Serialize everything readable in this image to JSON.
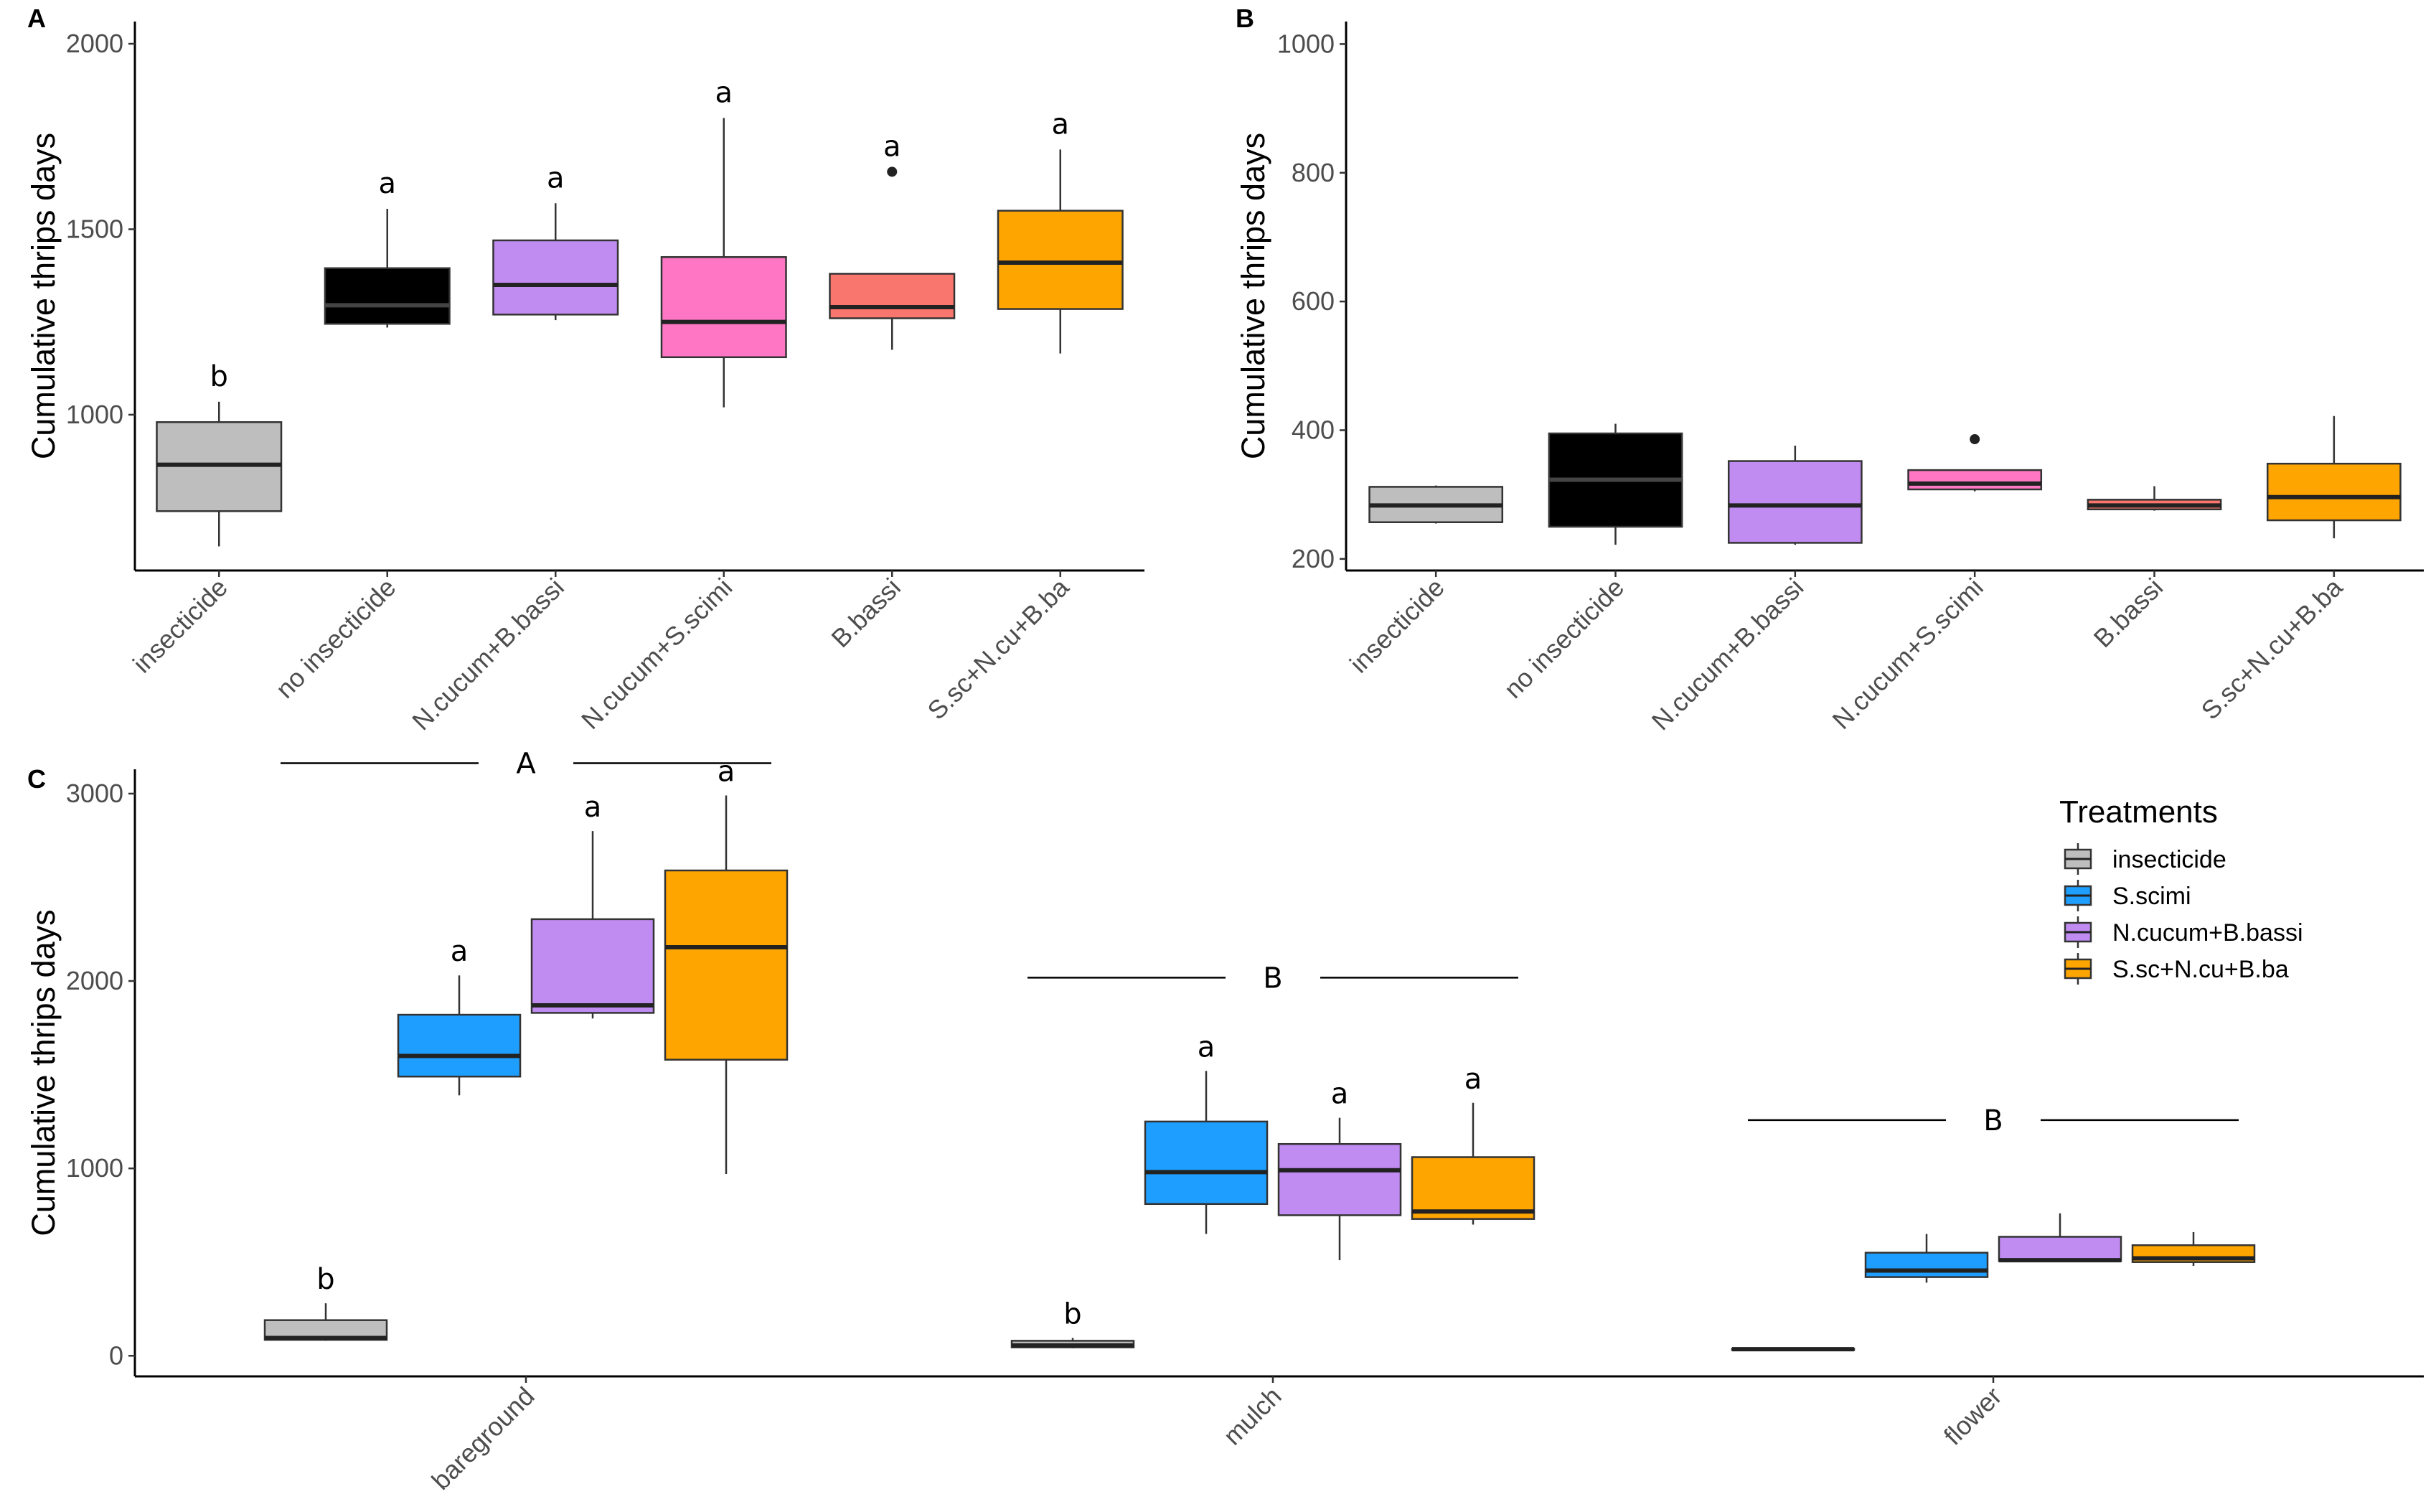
{
  "colors": {
    "insecticide": "#bebebe",
    "no insecticide": "#000000",
    "N.cucum+B.bassi": "#c08cf2",
    "N.cucum+S.scimi": "#ff77c4",
    "B.bassi": "#f8766d",
    "S.sc+N.cu+B.ba": "#ffa500",
    "S.scimi": "#1e9fff"
  },
  "chart_data": [
    {
      "panel": "A",
      "type": "box",
      "ylabel": "Cumulative thrips days",
      "yticks": [
        1000,
        1500,
        2000
      ],
      "ylim": [
        580,
        2060
      ],
      "categories": [
        "insecticide",
        "no insecticide",
        "N.cucum+B.bassi",
        "N.cucum+S.scimi",
        "B.bassi",
        "S.sc+N.cu+B.ba"
      ],
      "boxes": [
        {
          "category": "insecticide",
          "min": 645,
          "q1": 740,
          "median": 865,
          "q3": 980,
          "max": 1035,
          "outliers": [],
          "letter": "b"
        },
        {
          "category": "no insecticide",
          "min": 1235,
          "q1": 1245,
          "median": 1295,
          "q3": 1395,
          "max": 1555,
          "outliers": [],
          "letter": "a"
        },
        {
          "category": "N.cucum+B.bassi",
          "min": 1255,
          "q1": 1270,
          "median": 1350,
          "q3": 1470,
          "max": 1570,
          "outliers": [],
          "letter": "a"
        },
        {
          "category": "N.cucum+S.scimi",
          "min": 1020,
          "q1": 1155,
          "median": 1250,
          "q3": 1425,
          "max": 1800,
          "outliers": [],
          "letter": "a"
        },
        {
          "category": "B.bassi",
          "min": 1175,
          "q1": 1260,
          "median": 1290,
          "q3": 1380,
          "max": 1380,
          "outliers": [
            1655
          ],
          "letter": "a"
        },
        {
          "category": "S.sc+N.cu+B.ba",
          "min": 1165,
          "q1": 1285,
          "median": 1410,
          "q3": 1550,
          "max": 1715,
          "outliers": [],
          "letter": "a"
        }
      ]
    },
    {
      "panel": "B",
      "type": "box",
      "ylabel": "Cumulative thrips days",
      "yticks": [
        200,
        400,
        600,
        800,
        1000
      ],
      "ylim": [
        182,
        1035
      ],
      "categories": [
        "insecticide",
        "no insecticide",
        "N.cucum+B.bassi",
        "N.cucum+S.scimi",
        "B.bassi",
        "S.sc+N.cu+B.ba"
      ],
      "boxes": [
        {
          "category": "insecticide",
          "min": 255,
          "q1": 257,
          "median": 283,
          "q3": 312,
          "max": 314,
          "outliers": []
        },
        {
          "category": "no insecticide",
          "min": 222,
          "q1": 250,
          "median": 323,
          "q3": 395,
          "max": 410,
          "outliers": []
        },
        {
          "category": "N.cucum+B.bassi",
          "min": 222,
          "q1": 225,
          "median": 283,
          "q3": 352,
          "max": 376,
          "outliers": []
        },
        {
          "category": "N.cucum+S.scimi",
          "min": 305,
          "q1": 308,
          "median": 317,
          "q3": 338,
          "max": 338,
          "outliers": [
            386
          ]
        },
        {
          "category": "B.bassi",
          "min": 275,
          "q1": 277,
          "median": 283,
          "q3": 292,
          "max": 313,
          "outliers": []
        },
        {
          "category": "S.sc+N.cu+B.ba",
          "min": 232,
          "q1": 260,
          "median": 296,
          "q3": 348,
          "max": 422,
          "outliers": []
        }
      ]
    },
    {
      "panel": "C",
      "type": "box",
      "ylabel": "Cumulative thrips days",
      "yticks": [
        0,
        1000,
        2000,
        3000
      ],
      "ylim": [
        -110,
        3130
      ],
      "categories": [
        "bareground",
        "mulch",
        "flower"
      ],
      "group_letters": [
        "A",
        "B",
        "B"
      ],
      "legend_title": "Treatments",
      "legend": [
        "insecticide",
        "S.scimi",
        "N.cucum+B.bassi",
        "S.sc+N.cu+B.ba"
      ],
      "groups": [
        {
          "category": "bareground",
          "boxes": [
            {
              "treatment": "insecticide",
              "min": 80,
              "q1": 85,
              "median": 95,
              "q3": 190,
              "max": 280,
              "letter": "b"
            },
            {
              "treatment": "S.scimi",
              "min": 1390,
              "q1": 1490,
              "median": 1600,
              "q3": 1820,
              "max": 2030,
              "letter": "a"
            },
            {
              "treatment": "N.cucum+B.bassi",
              "min": 1800,
              "q1": 1830,
              "median": 1870,
              "q3": 2330,
              "max": 2800,
              "letter": "a"
            },
            {
              "treatment": "S.sc+N.cu+B.ba",
              "min": 970,
              "q1": 1580,
              "median": 2180,
              "q3": 2590,
              "max": 2990,
              "letter": "a"
            }
          ]
        },
        {
          "category": "mulch",
          "boxes": [
            {
              "treatment": "insecticide",
              "min": 40,
              "q1": 45,
              "median": 55,
              "q3": 80,
              "max": 95,
              "letter": "b"
            },
            {
              "treatment": "S.scimi",
              "min": 650,
              "q1": 810,
              "median": 980,
              "q3": 1250,
              "max": 1520,
              "letter": "a"
            },
            {
              "treatment": "N.cucum+B.bassi",
              "min": 510,
              "q1": 750,
              "median": 990,
              "q3": 1130,
              "max": 1270,
              "letter": "a"
            },
            {
              "treatment": "S.sc+N.cu+B.ba",
              "min": 700,
              "q1": 730,
              "median": 770,
              "q3": 1060,
              "max": 1350,
              "letter": "a"
            }
          ]
        },
        {
          "category": "flower",
          "boxes": [
            {
              "treatment": "insecticide",
              "min": 30,
              "q1": 32,
              "median": 35,
              "q3": 38,
              "max": 40
            },
            {
              "treatment": "S.scimi",
              "min": 390,
              "q1": 420,
              "median": 455,
              "q3": 550,
              "max": 650
            },
            {
              "treatment": "N.cucum+B.bassi",
              "min": 500,
              "q1": 505,
              "median": 510,
              "q3": 635,
              "max": 760
            },
            {
              "treatment": "S.sc+N.cu+B.ba",
              "min": 480,
              "q1": 500,
              "median": 520,
              "q3": 590,
              "max": 660
            }
          ]
        }
      ]
    }
  ]
}
